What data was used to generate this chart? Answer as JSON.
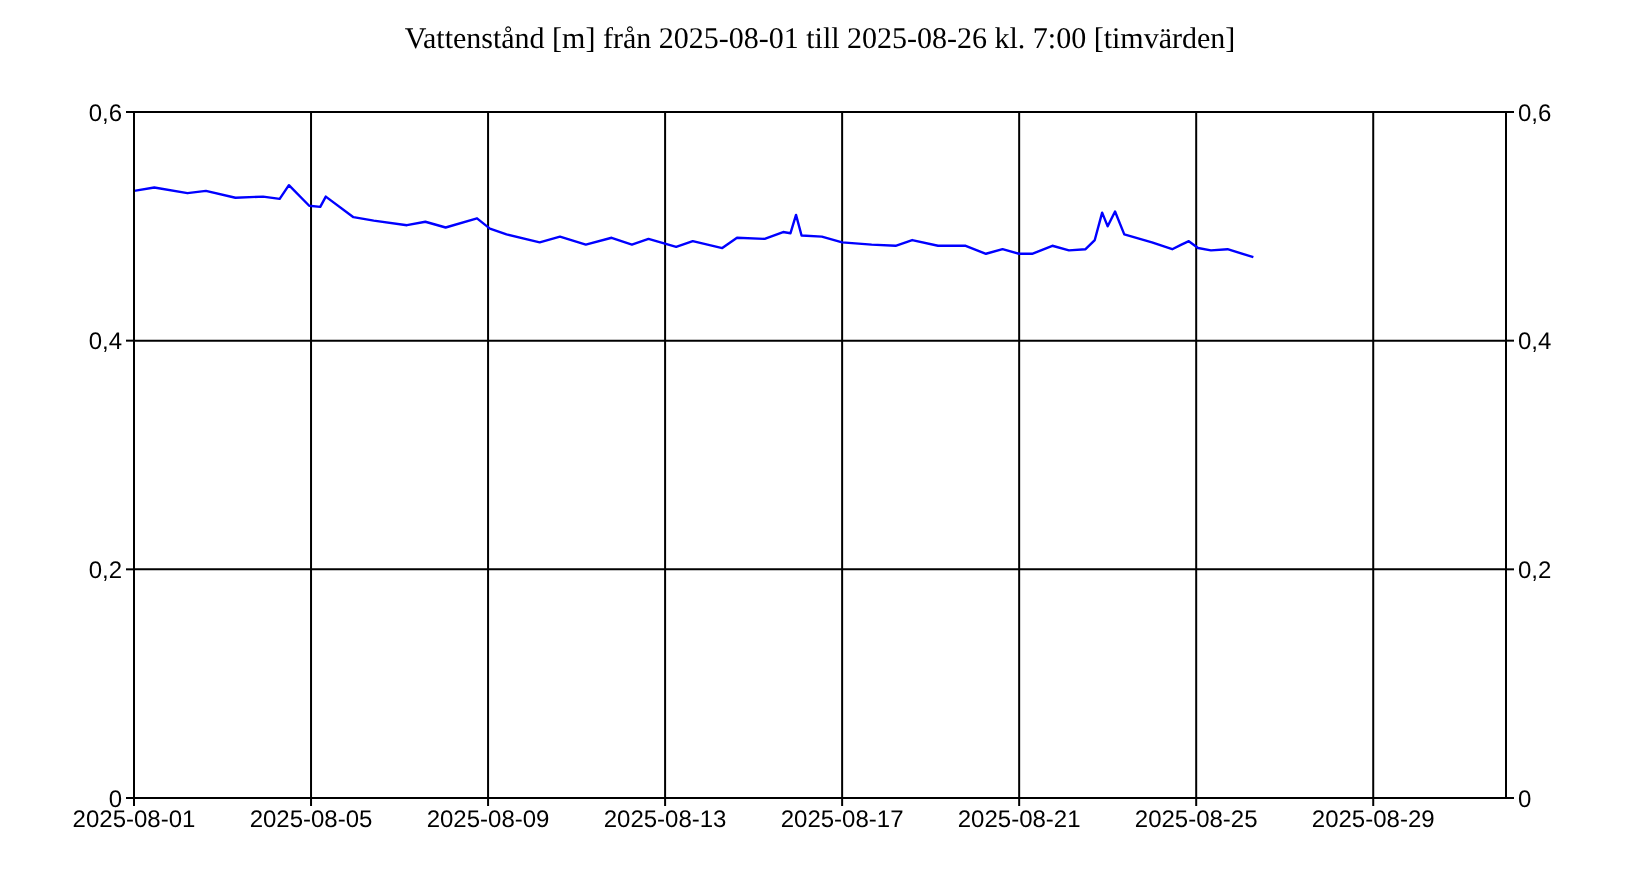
{
  "chart_data": {
    "type": "line",
    "title": "Vattenstånd [m] från 2025-08-01 till 2025-08-26 kl. 7:00 [timvärden]",
    "x": [
      "2025-08-01T00:00",
      "2025-08-01T11:00",
      "2025-08-02T05:00",
      "2025-08-02T15:00",
      "2025-08-03T07:00",
      "2025-08-03T22:00",
      "2025-08-04T07:00",
      "2025-08-04T12:00",
      "2025-08-04T23:00",
      "2025-08-05T05:00",
      "2025-08-05T08:00",
      "2025-08-05T23:00",
      "2025-08-06T10:00",
      "2025-08-07T04:00",
      "2025-08-07T14:00",
      "2025-08-08T01:00",
      "2025-08-08T18:00",
      "2025-08-09T01:00",
      "2025-08-09T10:00",
      "2025-08-10T04:00",
      "2025-08-10T15:00",
      "2025-08-11T05:00",
      "2025-08-11T19:00",
      "2025-08-12T06:00",
      "2025-08-12T15:00",
      "2025-08-13T06:00",
      "2025-08-13T15:00",
      "2025-08-14T07:00",
      "2025-08-14T15:00",
      "2025-08-15T06:00",
      "2025-08-15T16:00",
      "2025-08-15T20:00",
      "2025-08-15T23:00",
      "2025-08-16T02:00",
      "2025-08-16T13:00",
      "2025-08-17T00:00",
      "2025-08-17T16:00",
      "2025-08-18T05:00",
      "2025-08-18T14:00",
      "2025-08-19T04:00",
      "2025-08-19T19:00",
      "2025-08-20T06:00",
      "2025-08-20T15:00",
      "2025-08-21T00:00",
      "2025-08-21T07:00",
      "2025-08-21T18:00",
      "2025-08-22T03:00",
      "2025-08-22T12:00",
      "2025-08-22T17:00",
      "2025-08-22T21:00",
      "2025-08-23T00:00",
      "2025-08-23T04:00",
      "2025-08-23T09:00",
      "2025-08-24T00:00",
      "2025-08-24T11:00",
      "2025-08-24T16:00",
      "2025-08-24T20:00",
      "2025-08-25T01:00",
      "2025-08-25T08:00",
      "2025-08-25T17:00",
      "2025-08-26T07:00"
    ],
    "series": [
      {
        "color": "#0000ff",
        "values": [
          0.531,
          0.534,
          0.529,
          0.531,
          0.525,
          0.526,
          0.524,
          0.536,
          0.518,
          0.517,
          0.526,
          0.508,
          0.505,
          0.501,
          0.504,
          0.499,
          0.507,
          0.498,
          0.493,
          0.486,
          0.491,
          0.484,
          0.49,
          0.484,
          0.489,
          0.482,
          0.487,
          0.481,
          0.49,
          0.489,
          0.495,
          0.494,
          0.51,
          0.492,
          0.491,
          0.486,
          0.484,
          0.483,
          0.488,
          0.483,
          0.483,
          0.476,
          0.48,
          0.476,
          0.476,
          0.483,
          0.479,
          0.48,
          0.488,
          0.512,
          0.5,
          0.513,
          0.493,
          0.486,
          0.48,
          0.484,
          0.487,
          0.481,
          0.479,
          0.48,
          0.473
        ]
      }
    ],
    "xlim": [
      "2025-08-01",
      "2025-09-01"
    ],
    "xticks": [
      "2025-08-01",
      "2025-08-05",
      "2025-08-09",
      "2025-08-13",
      "2025-08-17",
      "2025-08-21",
      "2025-08-25",
      "2025-08-29"
    ],
    "ylim": [
      0,
      0.6
    ],
    "yticks": [
      {
        "value": 0,
        "label": "0"
      },
      {
        "value": 0.2,
        "label": "0,2"
      },
      {
        "value": 0.4,
        "label": "0,4"
      },
      {
        "value": 0.6,
        "label": "0,6"
      }
    ],
    "y2lim": [
      0,
      0.6
    ],
    "y2ticks": [
      {
        "value": 0,
        "label": "0"
      },
      {
        "value": 0.2,
        "label": "0,2"
      },
      {
        "value": 0.4,
        "label": "0,4"
      },
      {
        "value": 0.6,
        "label": "0,6"
      }
    ],
    "grid": true
  }
}
